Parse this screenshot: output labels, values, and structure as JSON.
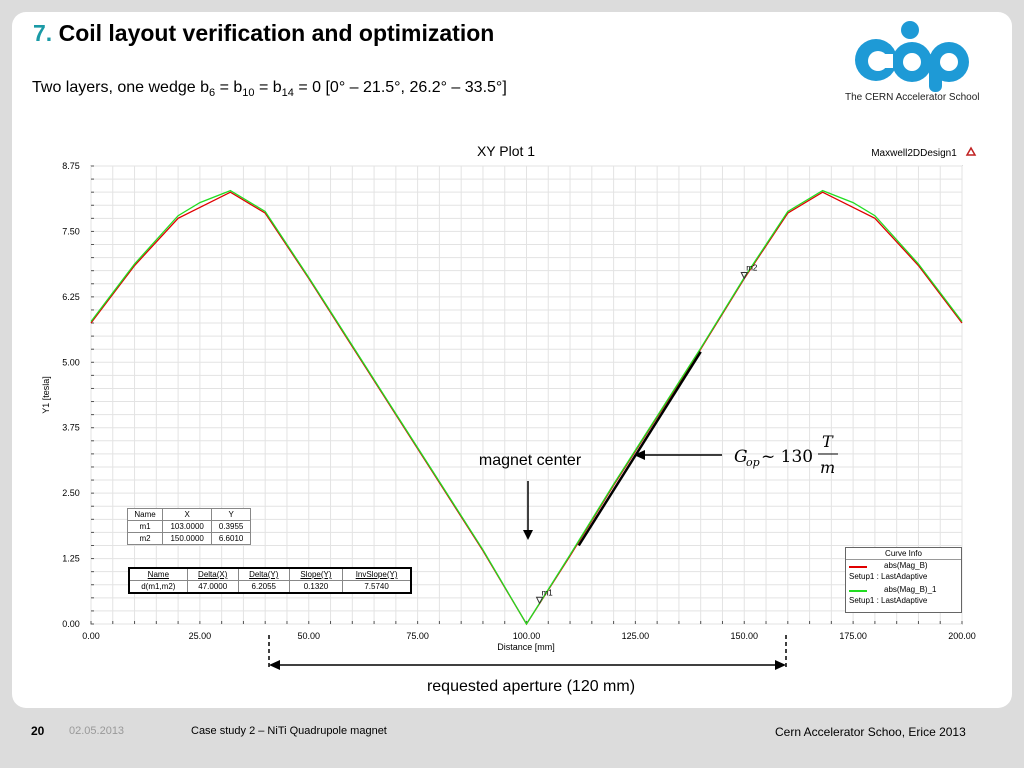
{
  "slide": {
    "title_number": "7.",
    "title_text": "Coil layout verification and optimization",
    "subtitle_parts": [
      "Two layers, one wedge b",
      "6",
      " = b",
      "10",
      " = b",
      "14",
      " = 0  [0° – 21.5°, 26.2° – 33.5°]"
    ]
  },
  "logo": {
    "caption": "The CERN Accelerator School",
    "color": "#1e9ad6"
  },
  "chart_data": {
    "type": "line",
    "title": "XY Plot 1",
    "design_label": "Maxwell2DDesign1",
    "xlabel": "Distance [mm]",
    "ylabel": "Y1 [tesla]",
    "xlim": [
      0,
      200
    ],
    "ylim": [
      0,
      8.75
    ],
    "x_ticks": [
      "0.00",
      "25.00",
      "50.00",
      "75.00",
      "100.00",
      "125.00",
      "150.00",
      "175.00",
      "200.00"
    ],
    "y_ticks": [
      "0.00",
      "1.25",
      "2.50",
      "3.75",
      "5.00",
      "6.25",
      "7.50",
      "8.75"
    ],
    "grid": true,
    "series": [
      {
        "name": "abs(Mag_B)",
        "setup": "Setup1 : LastAdaptive",
        "color": "#e00000",
        "x": [
          0,
          10,
          20,
          32,
          40,
          50,
          60,
          70,
          80,
          90,
          100,
          110,
          120,
          130,
          140,
          150,
          160,
          168,
          180,
          190,
          200
        ],
        "y": [
          5.75,
          6.85,
          7.75,
          8.25,
          7.85,
          6.6,
          5.3,
          4.0,
          2.7,
          1.4,
          0.0,
          1.3,
          2.65,
          3.95,
          5.25,
          6.6,
          7.85,
          8.25,
          7.75,
          6.85,
          5.75
        ]
      },
      {
        "name": "abs(Mag_B)_1",
        "setup": "Setup1 : LastAdaptive",
        "color": "#22dd22",
        "x": [
          0,
          10,
          20,
          25,
          32,
          40,
          50,
          60,
          70,
          80,
          90,
          100,
          110,
          120,
          130,
          140,
          150,
          160,
          168,
          175,
          180,
          190,
          200
        ],
        "y": [
          5.78,
          6.88,
          7.8,
          8.05,
          8.28,
          7.88,
          6.62,
          5.32,
          4.02,
          2.72,
          1.42,
          0.0,
          1.32,
          2.67,
          3.97,
          5.27,
          6.62,
          7.88,
          8.28,
          8.05,
          7.8,
          6.88,
          5.78
        ]
      }
    ],
    "markers": [
      {
        "name": "m1",
        "x": 103.0,
        "y": 0.3955
      },
      {
        "name": "m2",
        "x": 150.0,
        "y": 6.601
      }
    ],
    "marker_table": {
      "headers": [
        "Name",
        "X",
        "Y"
      ],
      "rows": [
        [
          "m1",
          "103.0000",
          "0.3955"
        ],
        [
          "m2",
          "150.0000",
          "6.6010"
        ]
      ]
    },
    "delta_table": {
      "headers": [
        "Name",
        "Delta(X)",
        "Delta(Y)",
        "Slope(Y)",
        "InvSlope(Y)"
      ],
      "rows": [
        [
          "d(m1,m2)",
          "47.0000",
          "6.2055",
          "0.1320",
          "7.5740"
        ]
      ]
    },
    "curve_info_title": "Curve Info",
    "fit_line": {
      "x": [
        112,
        140
      ],
      "y": [
        1.5,
        5.2
      ]
    },
    "annotations": {
      "magnet_center": "magnet center",
      "gradient_formula": "G_op ~ 130 T/m",
      "aperture": "requested aperture (120 mm)",
      "aperture_range_mm": [
        40,
        160
      ]
    }
  },
  "footer": {
    "page_number": "20",
    "date": "02.05.2013",
    "title": "Case study 2 – NiTi Quadrupole magnet",
    "right": "Cern Accelerator Schoo, Erice 2013"
  }
}
